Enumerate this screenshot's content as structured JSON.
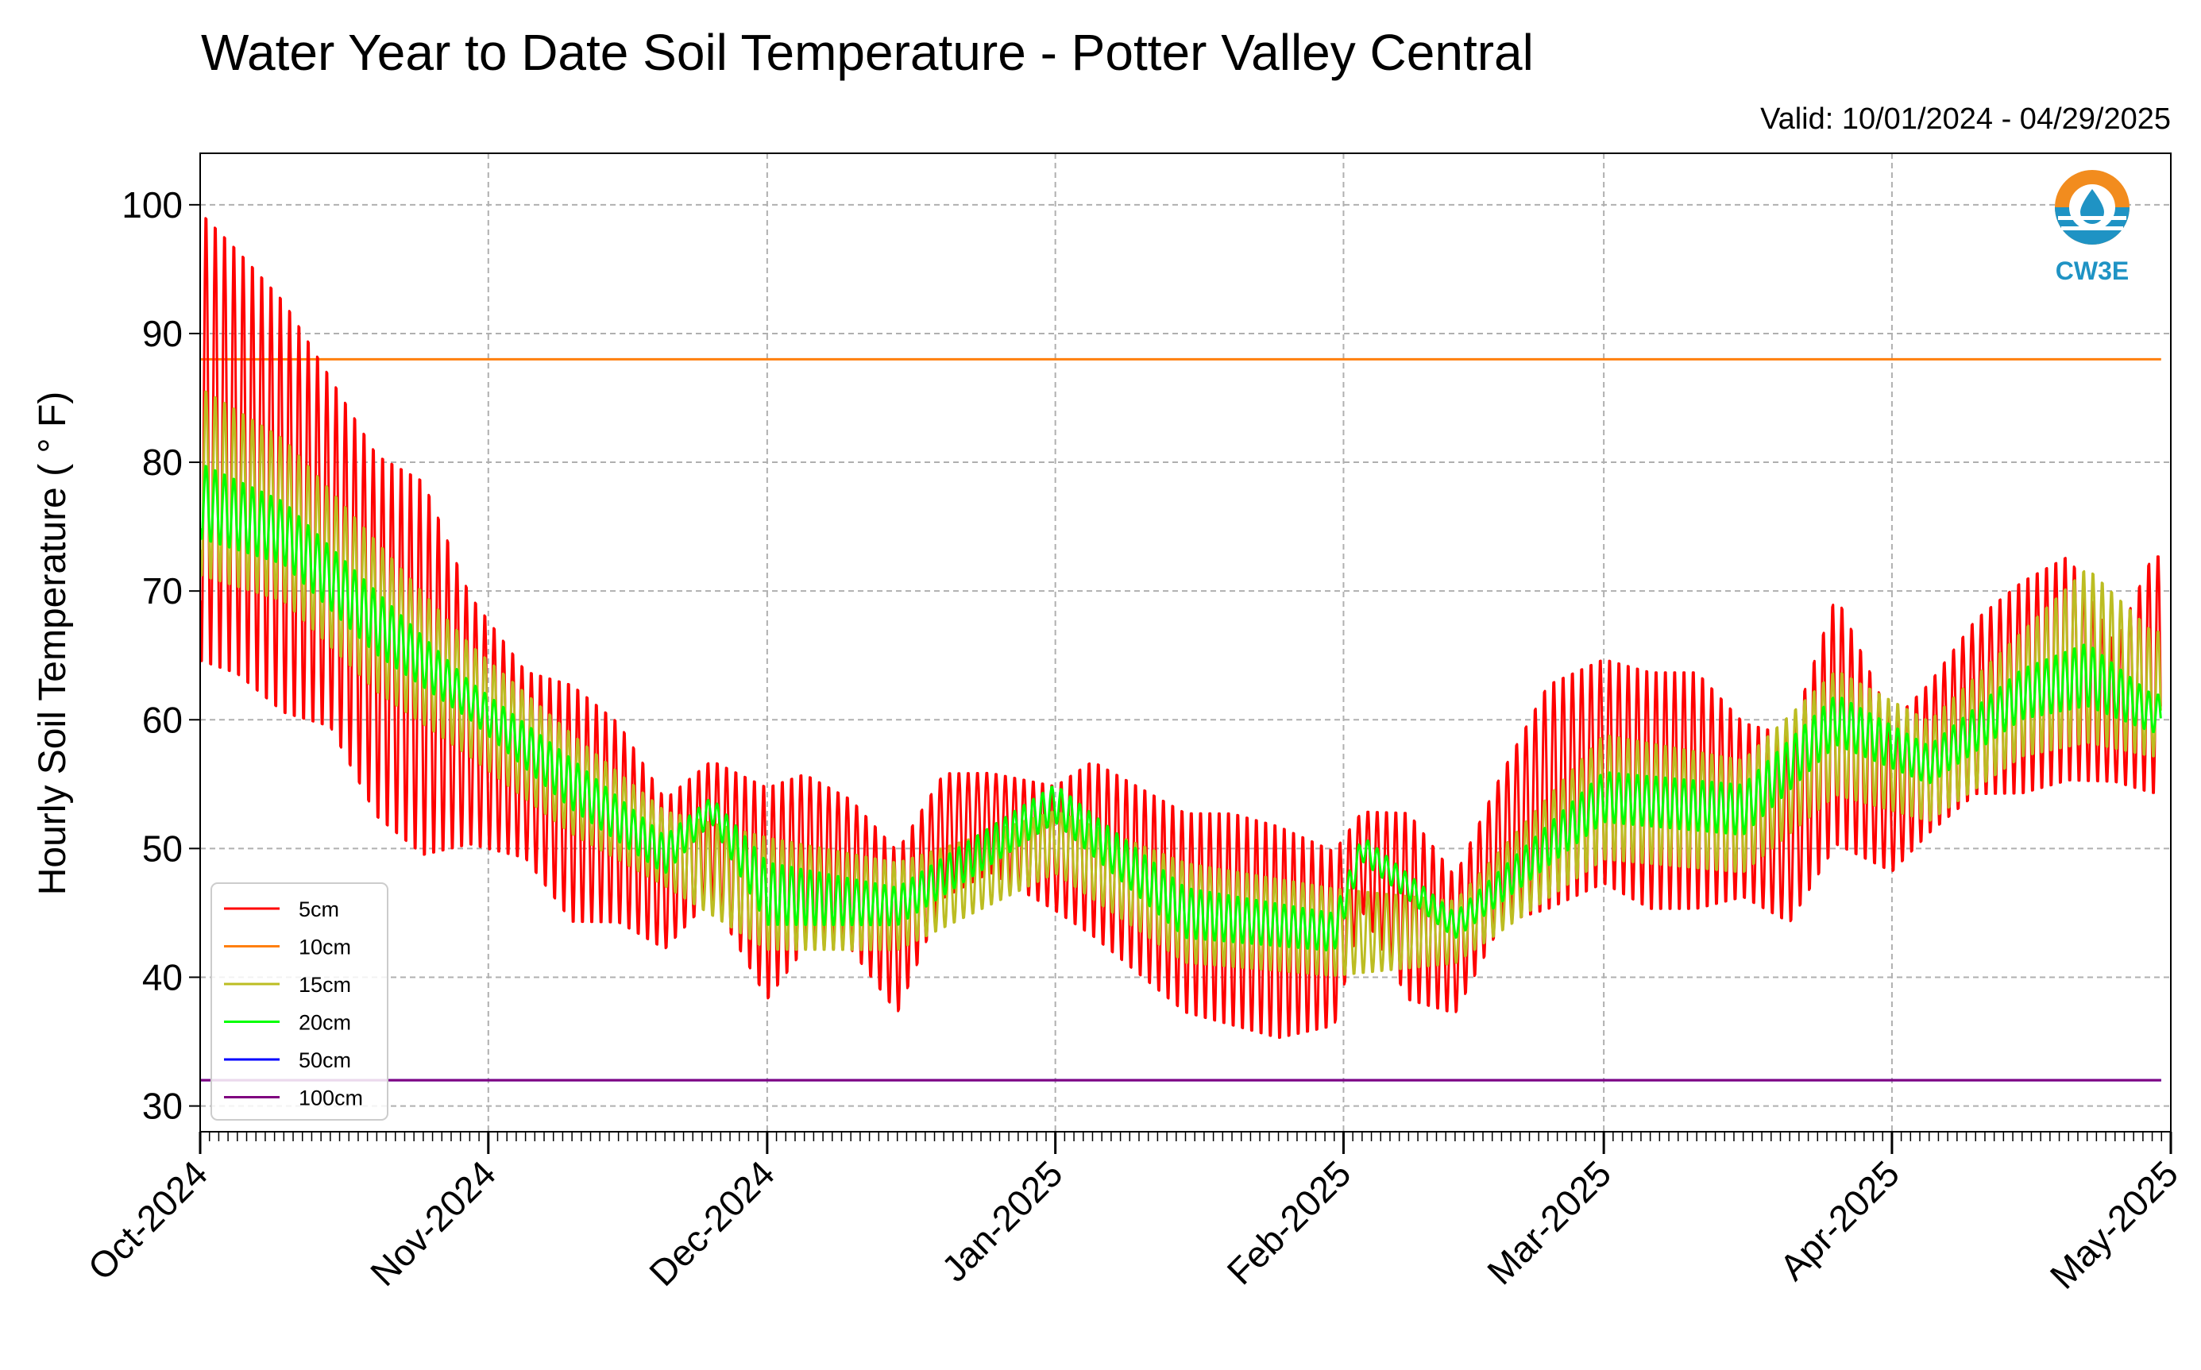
{
  "chart_data": {
    "type": "line",
    "title": "Water Year to Date Soil Temperature - Potter Valley Central",
    "subtitle": "Valid: 10/01/2024 - 04/29/2025",
    "ylabel": "Hourly Soil Temperature ( ° F)",
    "xlabel": "",
    "ylim": [
      28,
      104
    ],
    "yticks": [
      30,
      40,
      50,
      60,
      70,
      80,
      90,
      100
    ],
    "xlim": [
      "2024-10-01",
      "2025-05-01"
    ],
    "xticks": [
      {
        "date": "2024-10-01",
        "label": "Oct-2024"
      },
      {
        "date": "2024-11-01",
        "label": "Nov-2024"
      },
      {
        "date": "2024-12-01",
        "label": "Dec-2024"
      },
      {
        "date": "2025-01-01",
        "label": "Jan-2025"
      },
      {
        "date": "2025-02-01",
        "label": "Feb-2025"
      },
      {
        "date": "2025-03-01",
        "label": "Mar-2025"
      },
      {
        "date": "2025-04-01",
        "label": "Apr-2025"
      },
      {
        "date": "2025-05-01",
        "label": "May-2025"
      }
    ],
    "grid": true,
    "legend_position": "lower-left",
    "logo": {
      "icon": "cw3e-logo-icon",
      "text": "CW3E"
    },
    "series": [
      {
        "name": "5cm",
        "color": "#ff0000",
        "kind": "daily-range",
        "daily_max": [
          {
            "x": "2024-10-01",
            "y": 100
          },
          {
            "x": "2024-10-05",
            "y": 97
          },
          {
            "x": "2024-10-10",
            "y": 93
          },
          {
            "x": "2024-10-15",
            "y": 87
          },
          {
            "x": "2024-10-20",
            "y": 81
          },
          {
            "x": "2024-10-25",
            "y": 79
          },
          {
            "x": "2024-10-30",
            "y": 70
          },
          {
            "x": "2024-11-05",
            "y": 64
          },
          {
            "x": "2024-11-10",
            "y": 63
          },
          {
            "x": "2024-11-15",
            "y": 60
          },
          {
            "x": "2024-11-20",
            "y": 54
          },
          {
            "x": "2024-11-25",
            "y": 57
          },
          {
            "x": "2024-12-01",
            "y": 55
          },
          {
            "x": "2024-12-05",
            "y": 56
          },
          {
            "x": "2024-12-10",
            "y": 54
          },
          {
            "x": "2024-12-15",
            "y": 50
          },
          {
            "x": "2024-12-20",
            "y": 56
          },
          {
            "x": "2024-12-25",
            "y": 56
          },
          {
            "x": "2025-01-01",
            "y": 55
          },
          {
            "x": "2025-01-05",
            "y": 57
          },
          {
            "x": "2025-01-10",
            "y": 55
          },
          {
            "x": "2025-01-15",
            "y": 53
          },
          {
            "x": "2025-01-20",
            "y": 53
          },
          {
            "x": "2025-01-25",
            "y": 52
          },
          {
            "x": "2025-01-31",
            "y": 50
          },
          {
            "x": "2025-02-03",
            "y": 53
          },
          {
            "x": "2025-02-08",
            "y": 53
          },
          {
            "x": "2025-02-13",
            "y": 48
          },
          {
            "x": "2025-02-18",
            "y": 56
          },
          {
            "x": "2025-02-23",
            "y": 63
          },
          {
            "x": "2025-03-01",
            "y": 65
          },
          {
            "x": "2025-03-06",
            "y": 64
          },
          {
            "x": "2025-03-11",
            "y": 64
          },
          {
            "x": "2025-03-16",
            "y": 60
          },
          {
            "x": "2025-03-21",
            "y": 59
          },
          {
            "x": "2025-03-26",
            "y": 70
          },
          {
            "x": "2025-04-01",
            "y": 60
          },
          {
            "x": "2025-04-05",
            "y": 63
          },
          {
            "x": "2025-04-10",
            "y": 68
          },
          {
            "x": "2025-04-15",
            "y": 71
          },
          {
            "x": "2025-04-20",
            "y": 73
          },
          {
            "x": "2025-04-25",
            "y": 66
          },
          {
            "x": "2025-04-29",
            "y": 73
          }
        ],
        "daily_min": [
          {
            "x": "2024-10-01",
            "y": 64
          },
          {
            "x": "2024-10-05",
            "y": 63
          },
          {
            "x": "2024-10-10",
            "y": 60
          },
          {
            "x": "2024-10-15",
            "y": 59
          },
          {
            "x": "2024-10-20",
            "y": 52
          },
          {
            "x": "2024-10-25",
            "y": 49
          },
          {
            "x": "2024-10-30",
            "y": 50
          },
          {
            "x": "2024-11-05",
            "y": 49
          },
          {
            "x": "2024-11-10",
            "y": 44
          },
          {
            "x": "2024-11-15",
            "y": 44
          },
          {
            "x": "2024-11-20",
            "y": 42
          },
          {
            "x": "2024-11-25",
            "y": 46
          },
          {
            "x": "2024-12-01",
            "y": 38
          },
          {
            "x": "2024-12-05",
            "y": 42
          },
          {
            "x": "2024-12-10",
            "y": 42
          },
          {
            "x": "2024-12-15",
            "y": 37
          },
          {
            "x": "2024-12-20",
            "y": 46
          },
          {
            "x": "2024-12-25",
            "y": 48
          },
          {
            "x": "2025-01-01",
            "y": 45
          },
          {
            "x": "2025-01-05",
            "y": 43
          },
          {
            "x": "2025-01-10",
            "y": 40
          },
          {
            "x": "2025-01-15",
            "y": 37
          },
          {
            "x": "2025-01-20",
            "y": 36
          },
          {
            "x": "2025-01-25",
            "y": 35
          },
          {
            "x": "2025-01-31",
            "y": 36
          },
          {
            "x": "2025-02-03",
            "y": 45
          },
          {
            "x": "2025-02-08",
            "y": 38
          },
          {
            "x": "2025-02-13",
            "y": 37
          },
          {
            "x": "2025-02-18",
            "y": 44
          },
          {
            "x": "2025-02-23",
            "y": 45
          },
          {
            "x": "2025-03-01",
            "y": 47
          },
          {
            "x": "2025-03-06",
            "y": 45
          },
          {
            "x": "2025-03-11",
            "y": 45
          },
          {
            "x": "2025-03-16",
            "y": 46
          },
          {
            "x": "2025-03-21",
            "y": 44
          },
          {
            "x": "2025-03-26",
            "y": 50
          },
          {
            "x": "2025-04-01",
            "y": 48
          },
          {
            "x": "2025-04-05",
            "y": 51
          },
          {
            "x": "2025-04-10",
            "y": 54
          },
          {
            "x": "2025-04-15",
            "y": 54
          },
          {
            "x": "2025-04-20",
            "y": 55
          },
          {
            "x": "2025-04-25",
            "y": 55
          },
          {
            "x": "2025-04-29",
            "y": 54
          }
        ]
      },
      {
        "name": "10cm",
        "color": "#ff7f0e",
        "kind": "constant",
        "value": 88
      },
      {
        "name": "15cm",
        "color": "#bcbd22",
        "kind": "daily-range",
        "daily_max": [
          {
            "x": "2024-10-01",
            "y": 86
          },
          {
            "x": "2024-10-10",
            "y": 82
          },
          {
            "x": "2024-10-20",
            "y": 74
          },
          {
            "x": "2024-10-30",
            "y": 66
          },
          {
            "x": "2024-11-10",
            "y": 59
          },
          {
            "x": "2024-11-20",
            "y": 53
          },
          {
            "x": "2024-12-01",
            "y": 51
          },
          {
            "x": "2024-12-15",
            "y": 49
          },
          {
            "x": "2025-01-01",
            "y": 53
          },
          {
            "x": "2025-01-15",
            "y": 49
          },
          {
            "x": "2025-01-31",
            "y": 47
          },
          {
            "x": "2025-02-13",
            "y": 46
          },
          {
            "x": "2025-03-01",
            "y": 59
          },
          {
            "x": "2025-03-16",
            "y": 57
          },
          {
            "x": "2025-03-26",
            "y": 64
          },
          {
            "x": "2025-04-05",
            "y": 60
          },
          {
            "x": "2025-04-15",
            "y": 67
          },
          {
            "x": "2025-04-22",
            "y": 72
          },
          {
            "x": "2025-04-29",
            "y": 67
          }
        ],
        "daily_min": [
          {
            "x": "2024-10-01",
            "y": 71
          },
          {
            "x": "2024-10-10",
            "y": 69
          },
          {
            "x": "2024-10-20",
            "y": 62
          },
          {
            "x": "2024-10-30",
            "y": 57
          },
          {
            "x": "2024-11-10",
            "y": 51
          },
          {
            "x": "2024-11-20",
            "y": 47
          },
          {
            "x": "2024-12-01",
            "y": 42
          },
          {
            "x": "2024-12-15",
            "y": 42
          },
          {
            "x": "2025-01-01",
            "y": 48
          },
          {
            "x": "2025-01-15",
            "y": 41
          },
          {
            "x": "2025-01-31",
            "y": 40
          },
          {
            "x": "2025-02-13",
            "y": 41
          },
          {
            "x": "2025-03-01",
            "y": 49
          },
          {
            "x": "2025-03-16",
            "y": 48
          },
          {
            "x": "2025-03-26",
            "y": 54
          },
          {
            "x": "2025-04-05",
            "y": 52
          },
          {
            "x": "2025-04-15",
            "y": 57
          },
          {
            "x": "2025-04-22",
            "y": 58
          },
          {
            "x": "2025-04-29",
            "y": 57
          }
        ]
      },
      {
        "name": "20cm",
        "color": "#00ff00",
        "kind": "daily-range",
        "daily_max": [
          {
            "x": "2024-10-01",
            "y": 80
          },
          {
            "x": "2024-10-10",
            "y": 77
          },
          {
            "x": "2024-10-20",
            "y": 70
          },
          {
            "x": "2024-10-30",
            "y": 63
          },
          {
            "x": "2024-11-10",
            "y": 57
          },
          {
            "x": "2024-11-20",
            "y": 51
          },
          {
            "x": "2024-11-25",
            "y": 54
          },
          {
            "x": "2024-12-01",
            "y": 49
          },
          {
            "x": "2024-12-15",
            "y": 47
          },
          {
            "x": "2025-01-01",
            "y": 55
          },
          {
            "x": "2025-01-15",
            "y": 47
          },
          {
            "x": "2025-01-31",
            "y": 45
          },
          {
            "x": "2025-02-03",
            "y": 51
          },
          {
            "x": "2025-02-13",
            "y": 45
          },
          {
            "x": "2025-03-01",
            "y": 56
          },
          {
            "x": "2025-03-16",
            "y": 55
          },
          {
            "x": "2025-03-26",
            "y": 62
          },
          {
            "x": "2025-04-05",
            "y": 58
          },
          {
            "x": "2025-04-15",
            "y": 64
          },
          {
            "x": "2025-04-22",
            "y": 66
          },
          {
            "x": "2025-04-29",
            "y": 62
          }
        ],
        "daily_min": [
          {
            "x": "2024-10-01",
            "y": 74
          },
          {
            "x": "2024-10-10",
            "y": 72
          },
          {
            "x": "2024-10-20",
            "y": 65
          },
          {
            "x": "2024-10-30",
            "y": 60
          },
          {
            "x": "2024-11-10",
            "y": 53
          },
          {
            "x": "2024-11-20",
            "y": 48
          },
          {
            "x": "2024-11-25",
            "y": 52
          },
          {
            "x": "2024-12-01",
            "y": 44
          },
          {
            "x": "2024-12-15",
            "y": 44
          },
          {
            "x": "2025-01-01",
            "y": 52
          },
          {
            "x": "2025-01-15",
            "y": 43
          },
          {
            "x": "2025-01-31",
            "y": 42
          },
          {
            "x": "2025-02-03",
            "y": 49
          },
          {
            "x": "2025-02-13",
            "y": 43
          },
          {
            "x": "2025-03-01",
            "y": 52
          },
          {
            "x": "2025-03-16",
            "y": 51
          },
          {
            "x": "2025-03-26",
            "y": 58
          },
          {
            "x": "2025-04-05",
            "y": 55
          },
          {
            "x": "2025-04-15",
            "y": 60
          },
          {
            "x": "2025-04-22",
            "y": 61
          },
          {
            "x": "2025-04-29",
            "y": 59
          }
        ]
      },
      {
        "name": "50cm",
        "color": "#0000ff",
        "kind": "constant",
        "value": 32
      },
      {
        "name": "100cm",
        "color": "#7f007f",
        "kind": "constant",
        "value": 32
      }
    ]
  }
}
